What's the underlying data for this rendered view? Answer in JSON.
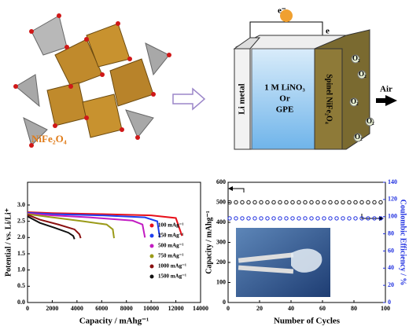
{
  "diagram": {
    "compound": "NiFe₂O₄",
    "electron_top": "e⁻",
    "electron_side": "e",
    "anode": "Li metal",
    "electrolyte": [
      "1 M LiNO₃",
      "Or",
      "GPE"
    ],
    "cathode": "Spinel NiFe₂O₄",
    "gas": "Air",
    "bubble": "O₂"
  },
  "chart_data": [
    {
      "type": "line",
      "xlabel": "Capacity / mAhg⁻¹",
      "ylabel": "Potential / vs. Li/Li⁺",
      "xlim": [
        0,
        14000
      ],
      "xticks": [
        0,
        2000,
        4000,
        6000,
        8000,
        10000,
        12000,
        14000
      ],
      "ylim": [
        0,
        3.7
      ],
      "yticks": [
        {
          "value": 0,
          "label": "0.0"
        },
        0.5,
        {
          "value": 1,
          "label": "1.0"
        },
        1.5,
        {
          "value": 2,
          "label": "2.0"
        },
        2.5,
        {
          "value": 3,
          "label": "3.0"
        }
      ],
      "legend": "right",
      "series": [
        {
          "name": "100 mAg⁻¹",
          "color": "#e8101a",
          "x": [
            0,
            2000,
            6000,
            10000,
            12000,
            12500
          ],
          "values": [
            2.78,
            2.75,
            2.72,
            2.68,
            2.6,
            2.05
          ]
        },
        {
          "name": "250 mAg⁻¹",
          "color": "#1f3ff0",
          "x": [
            0,
            2000,
            6000,
            9500,
            10500,
            10700
          ],
          "values": [
            2.76,
            2.72,
            2.68,
            2.62,
            2.5,
            2.0
          ]
        },
        {
          "name": "500 mAg⁻¹",
          "color": "#c21cc2",
          "x": [
            0,
            2000,
            5000,
            8500,
            9300,
            9500
          ],
          "values": [
            2.74,
            2.68,
            2.62,
            2.52,
            2.4,
            2.0
          ]
        },
        {
          "name": "750 mAg⁻¹",
          "color": "#9a9a18",
          "x": [
            0,
            2000,
            4500,
            6400,
            6900,
            7000
          ],
          "values": [
            2.72,
            2.62,
            2.5,
            2.4,
            2.25,
            1.98
          ]
        },
        {
          "name": "1000 mAg⁻¹",
          "color": "#8a1010",
          "x": [
            0,
            1000,
            2500,
            3800,
            4200,
            4300
          ],
          "values": [
            2.7,
            2.55,
            2.4,
            2.25,
            2.1,
            1.98
          ]
        },
        {
          "name": "1500 mAg⁻¹",
          "color": "#111111",
          "x": [
            0,
            1000,
            2200,
            3300,
            3700,
            3800
          ],
          "values": [
            2.65,
            2.45,
            2.3,
            2.15,
            2.05,
            1.95
          ]
        }
      ]
    },
    {
      "type": "scatter",
      "xlabel": "Number of Cycles",
      "ylabel": "Capacity / mAhg⁻¹",
      "y2label": "Coulombic Efficiency / %",
      "xlim": [
        0,
        100
      ],
      "xticks": [
        0,
        20,
        40,
        60,
        80,
        100
      ],
      "ylim": [
        0,
        600
      ],
      "yticks": [
        0,
        100,
        200,
        300,
        400,
        500,
        600
      ],
      "y2lim": [
        0,
        140
      ],
      "y2ticks": [
        0,
        20,
        40,
        60,
        80,
        100,
        120,
        140
      ],
      "series": [
        {
          "name": "Capacity",
          "color": "#111111",
          "x": [
            1,
            5,
            9,
            13,
            17,
            21,
            25,
            29,
            33,
            37,
            41,
            45,
            49,
            53,
            57,
            61,
            65,
            69,
            73,
            77,
            81,
            85,
            89,
            93,
            97
          ],
          "values": [
            500,
            500,
            500,
            500,
            500,
            500,
            500,
            500,
            500,
            500,
            500,
            500,
            500,
            500,
            500,
            500,
            500,
            500,
            500,
            500,
            500,
            500,
            500,
            500,
            500
          ]
        },
        {
          "name": "Coulombic Efficiency",
          "color": "#1f2fe0",
          "axis": "y2",
          "x": [
            1,
            5,
            9,
            13,
            17,
            21,
            25,
            29,
            33,
            37,
            41,
            45,
            49,
            53,
            57,
            61,
            65,
            69,
            73,
            77,
            81,
            85,
            89,
            93,
            97
          ],
          "values": [
            98,
            98,
            98,
            98,
            98,
            98,
            98,
            98,
            98,
            98,
            98,
            98,
            98,
            98,
            98,
            98,
            98,
            98,
            98,
            98,
            98,
            98,
            98,
            98,
            98
          ]
        }
      ]
    }
  ]
}
